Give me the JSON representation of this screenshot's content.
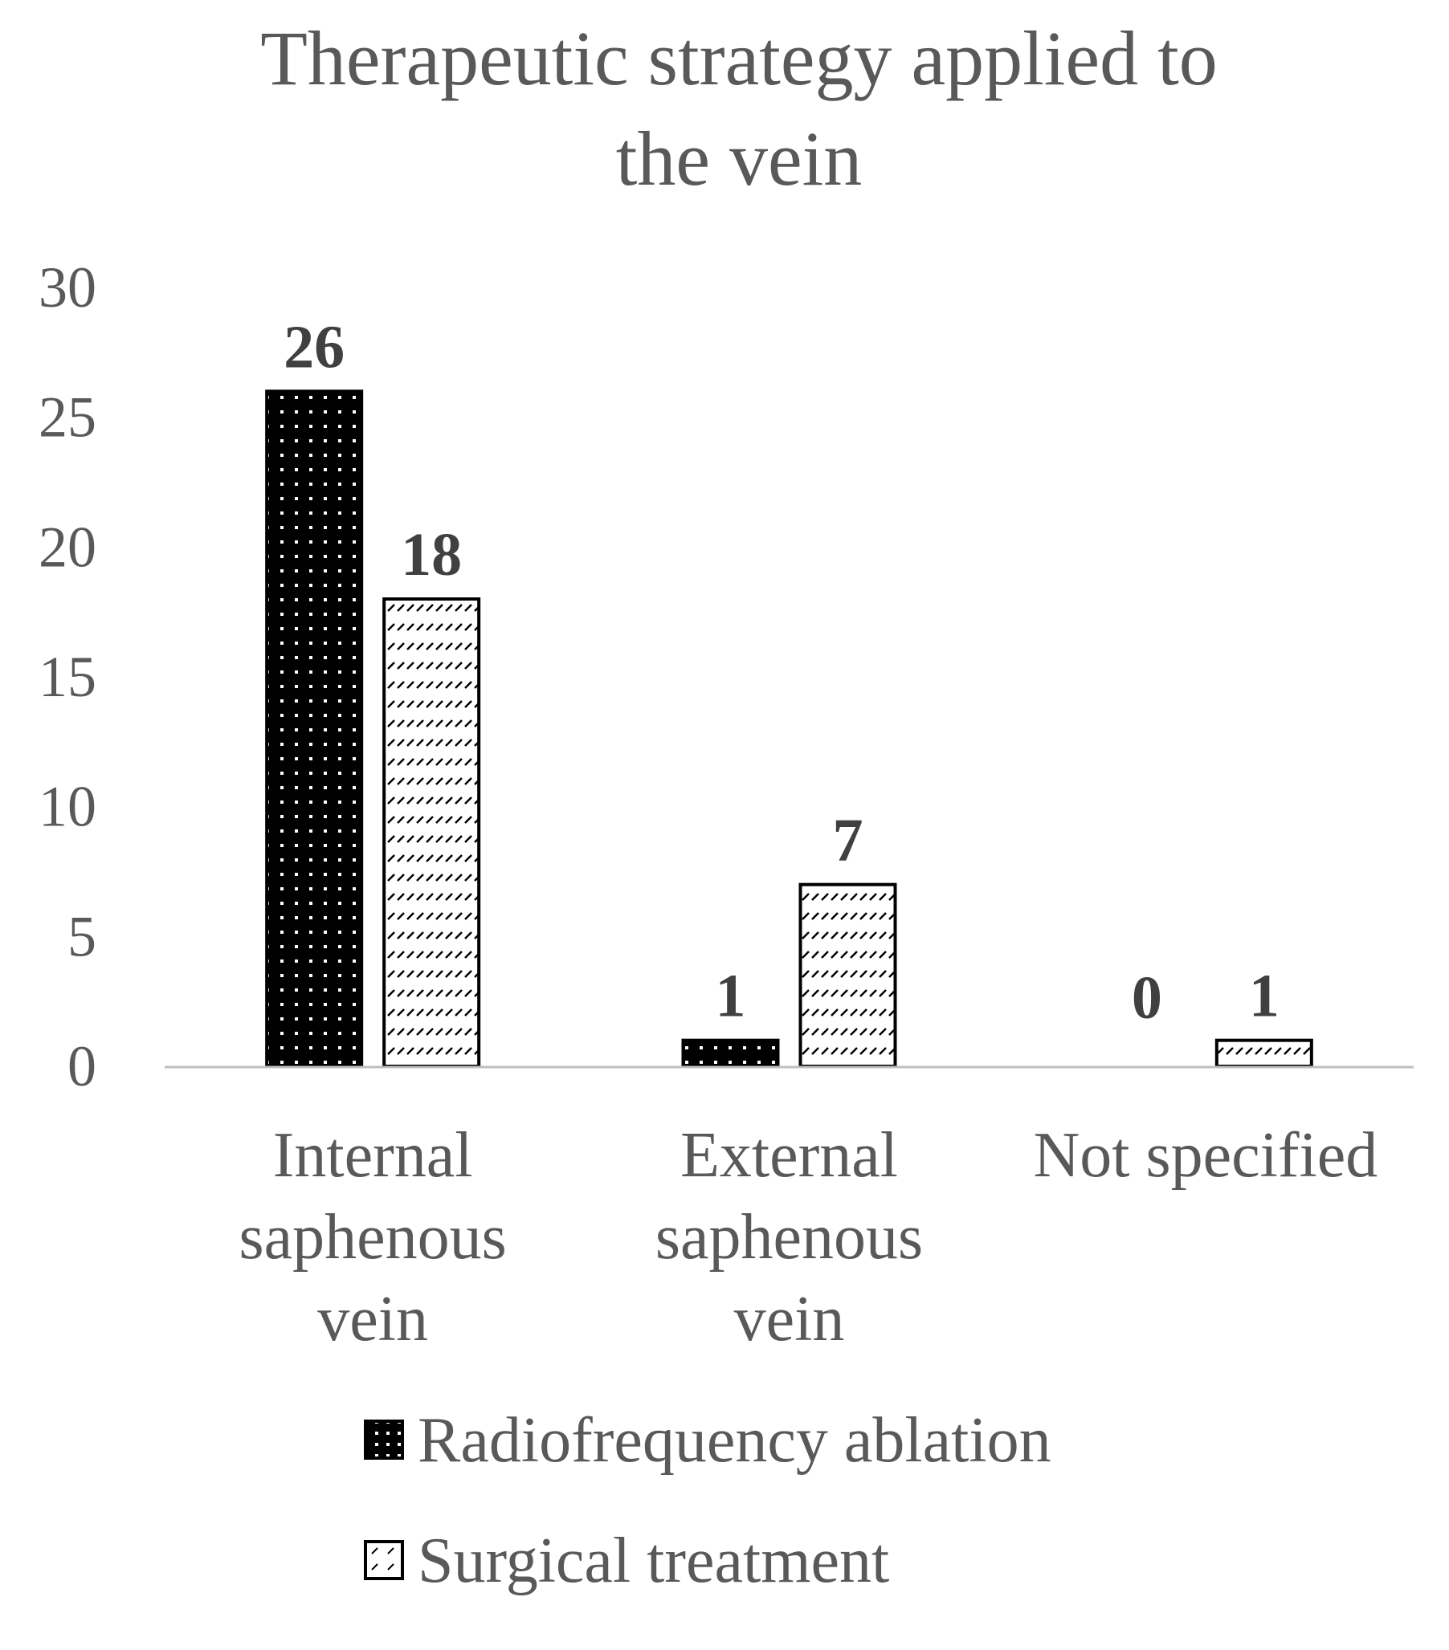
{
  "chart_data": {
    "type": "bar",
    "title": "Therapeutic strategy applied to the vein",
    "title_lines": [
      "Therapeutic strategy applied to",
      "the vein"
    ],
    "categories": [
      "Internal saphenous vein",
      "External saphenous vein",
      "Not specified"
    ],
    "category_lines": [
      [
        "Internal",
        "saphenous",
        "vein"
      ],
      [
        "External",
        "saphenous",
        "vein"
      ],
      [
        "Not specified"
      ]
    ],
    "series": [
      {
        "name": "Radiofrequency ablation",
        "values": [
          26,
          1,
          0
        ],
        "fill": "#000000",
        "pattern": "dots"
      },
      {
        "name": "Surgical treatment",
        "values": [
          18,
          7,
          1
        ],
        "fill": "#ffffff",
        "pattern": "dashes"
      }
    ],
    "yticks": [
      0,
      5,
      10,
      15,
      20,
      25,
      30
    ],
    "ylim": [
      0,
      30
    ],
    "xlabel": "",
    "ylabel": "",
    "grid": false,
    "data_labels": true,
    "legend": "bottom",
    "colors": {
      "text": "#595959",
      "label": "#404040",
      "axis": "#bfbfbf",
      "bar_outline": "#000000"
    }
  }
}
